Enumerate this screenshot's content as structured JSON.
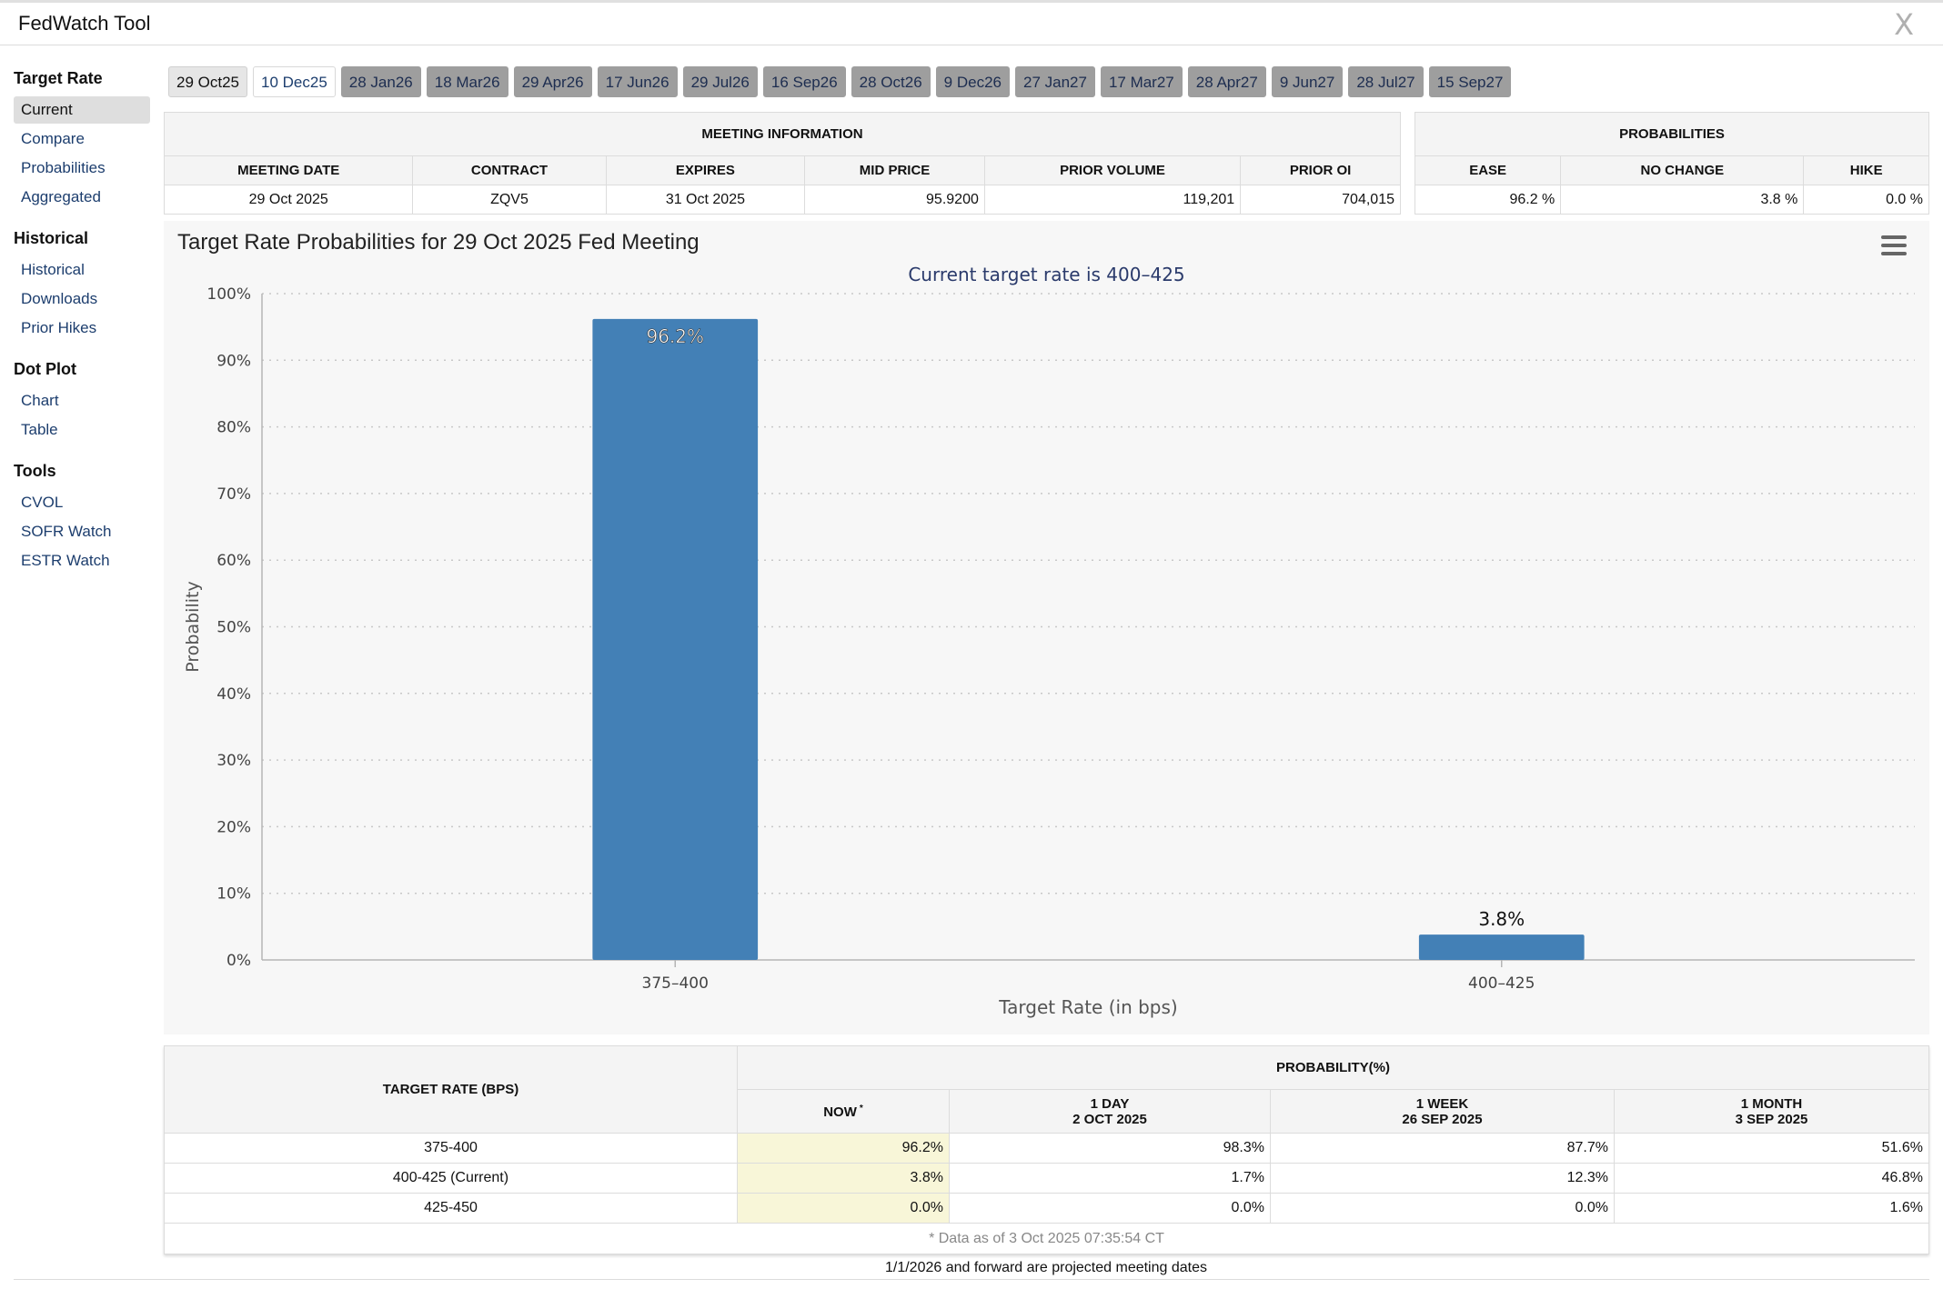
{
  "app": {
    "title": "FedWatch Tool",
    "close_label": "X"
  },
  "sidebar": {
    "sections": [
      {
        "title": "Target Rate",
        "items": [
          {
            "label": "Current",
            "active": true
          },
          {
            "label": "Compare"
          },
          {
            "label": "Probabilities"
          },
          {
            "label": "Aggregated"
          }
        ]
      },
      {
        "title": "Historical",
        "items": [
          {
            "label": "Historical"
          },
          {
            "label": "Downloads"
          },
          {
            "label": "Prior Hikes"
          }
        ]
      },
      {
        "title": "Dot Plot",
        "items": [
          {
            "label": "Chart"
          },
          {
            "label": "Table"
          }
        ]
      },
      {
        "title": "Tools",
        "items": [
          {
            "label": "CVOL"
          },
          {
            "label": "SOFR Watch"
          },
          {
            "label": "ESTR Watch"
          }
        ]
      }
    ]
  },
  "tabs": [
    "29 Oct25",
    "10 Dec25",
    "28 Jan26",
    "18 Mar26",
    "29 Apr26",
    "17 Jun26",
    "29 Jul26",
    "16 Sep26",
    "28 Oct26",
    "9 Dec26",
    "27 Jan27",
    "17 Mar27",
    "28 Apr27",
    "9 Jun27",
    "28 Jul27",
    "15 Sep27"
  ],
  "meeting_info": {
    "title": "MEETING INFORMATION",
    "headers": [
      "MEETING DATE",
      "CONTRACT",
      "EXPIRES",
      "MID PRICE",
      "PRIOR VOLUME",
      "PRIOR OI"
    ],
    "row": [
      "29 Oct 2025",
      "ZQV5",
      "31 Oct 2025",
      "95.9200",
      "119,201",
      "704,015"
    ]
  },
  "probabilities": {
    "title": "PROBABILITIES",
    "headers": [
      "EASE",
      "NO CHANGE",
      "HIKE"
    ],
    "row": [
      "96.2 %",
      "3.8 %",
      "0.0 %"
    ]
  },
  "chart_data": {
    "type": "bar",
    "title": "Target Rate Probabilities for 29 Oct 2025 Fed Meeting",
    "subtitle": "Current target rate is 400–425",
    "xlabel": "Target Rate (in bps)",
    "ylabel": "Probability",
    "categories": [
      "375–400",
      "400–425"
    ],
    "values": [
      96.2,
      3.8
    ],
    "data_labels": [
      "96.2%",
      "3.8%"
    ],
    "ylim": [
      0,
      100
    ],
    "yticks": [
      "0%",
      "10%",
      "20%",
      "30%",
      "40%",
      "50%",
      "60%",
      "70%",
      "80%",
      "90%",
      "100%"
    ],
    "grid": true,
    "bar_color": "#4380b6"
  },
  "prob_table": {
    "rate_header": "TARGET RATE (BPS)",
    "prob_header": "PROBABILITY(%)",
    "col_now": "NOW",
    "now_mark": "*",
    "cols": [
      {
        "line1": "1 DAY",
        "line2": "2 OCT 2025"
      },
      {
        "line1": "1 WEEK",
        "line2": "26 SEP 2025"
      },
      {
        "line1": "1 MONTH",
        "line2": "3 SEP 2025"
      }
    ],
    "rows": [
      {
        "rate": "375-400",
        "now": "96.2%",
        "day": "98.3%",
        "week": "87.7%",
        "month": "51.6%"
      },
      {
        "rate": "400-425 (Current)",
        "now": "3.8%",
        "day": "1.7%",
        "week": "12.3%",
        "month": "46.8%"
      },
      {
        "rate": "425-450",
        "now": "0.0%",
        "day": "0.0%",
        "week": "0.0%",
        "month": "1.6%"
      }
    ],
    "footnote": "* Data as of 3 Oct 2025 07:35:54 CT"
  },
  "bottom_note": "1/1/2026 and forward are projected meeting dates"
}
